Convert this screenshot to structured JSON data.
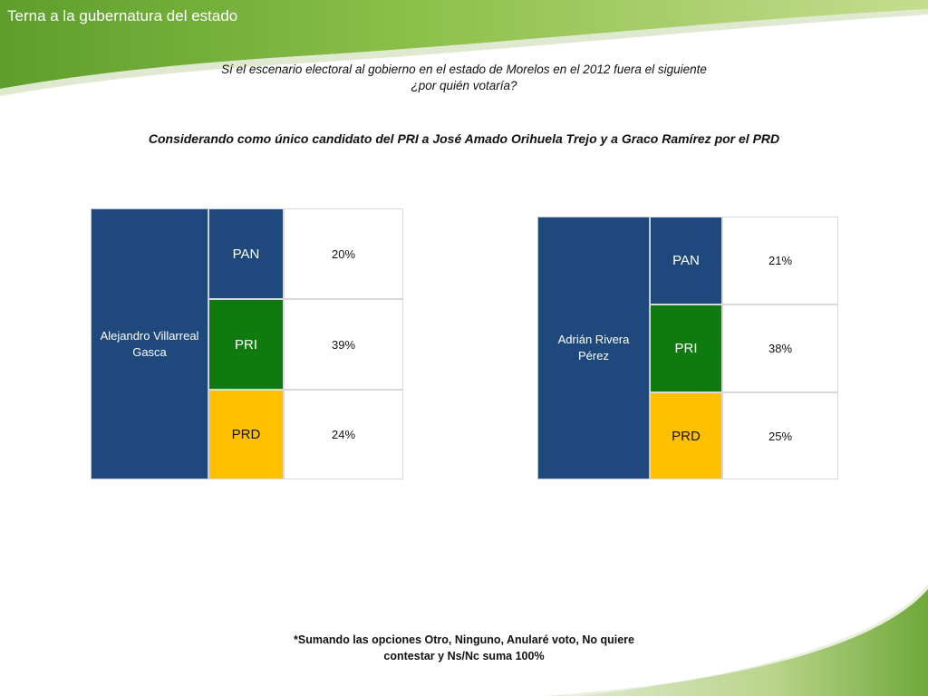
{
  "slide": {
    "title": "Terna a la gubernatura del estado",
    "question_line1": "Sí el escenario electoral al gobierno en el estado de Morelos en el 2012 fuera el siguiente",
    "question_line2": "¿por quién votaría?",
    "subheading": "Considerando como único candidato del PRI a José Amado Orihuela Trejo y a Graco Ramírez por el PRD",
    "footnote_line1": "*Sumando las opciones Otro, Ninguno, Anularé voto, No quiere",
    "footnote_line2": "contestar y Ns/Nc suma 100%"
  },
  "colors": {
    "PAN": "#1f497d",
    "PRI": "#0f7a0f",
    "PRD": "#ffc000",
    "header_green": "#7cb342"
  },
  "scenarios": [
    {
      "candidate": "Alejandro Villarreal Gasca",
      "rows": [
        {
          "party": "PAN",
          "percent": "20%"
        },
        {
          "party": "PRI",
          "percent": "39%"
        },
        {
          "party": "PRD",
          "percent": "24%"
        }
      ]
    },
    {
      "candidate": "Adrián Rivera Pérez",
      "rows": [
        {
          "party": "PAN",
          "percent": "21%"
        },
        {
          "party": "PRI",
          "percent": "38%"
        },
        {
          "party": "PRD",
          "percent": "25%"
        }
      ]
    }
  ]
}
